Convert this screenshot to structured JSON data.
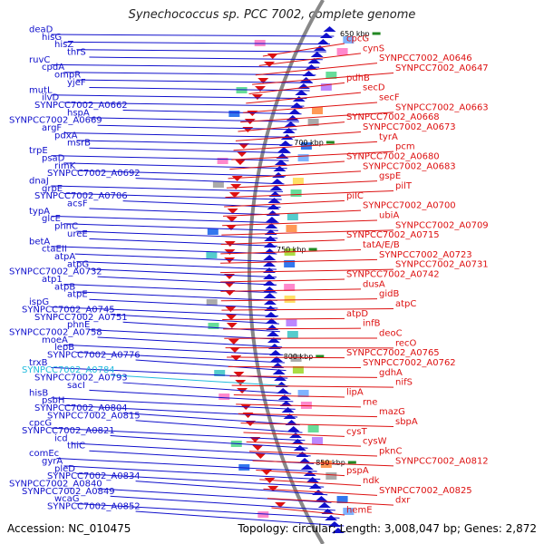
{
  "title": "Synechococcus sp. PCC 7002, complete genome",
  "footer": {
    "accession": "Accession: NC_010475",
    "summary": "Topology: circular; Length: 3,008,047 bp; Genes: 2,872"
  },
  "colors": {
    "forward": "#1010cc",
    "reverse": "#dd1111",
    "highlight": "#22bbdd",
    "backbone": "#888888",
    "tick": "#228822"
  },
  "ticks": [
    {
      "label": "650 kbp"
    },
    {
      "label": "700 kbp"
    },
    {
      "label": "750 kbp"
    },
    {
      "label": "800 kbp"
    },
    {
      "label": "850 kbp"
    }
  ],
  "left_genes": [
    {
      "name": "deaD"
    },
    {
      "name": "hisG"
    },
    {
      "name": "hisZ"
    },
    {
      "name": "thrS"
    },
    {
      "name": "ruvC"
    },
    {
      "name": "cpdA"
    },
    {
      "name": "ompR"
    },
    {
      "name": "yjeF"
    },
    {
      "name": "mutL"
    },
    {
      "name": "ilvD"
    },
    {
      "name": "SYNPCC7002_A0662"
    },
    {
      "name": "hspA"
    },
    {
      "name": "SYNPCC7002_A0669"
    },
    {
      "name": "argF"
    },
    {
      "name": "pdxA"
    },
    {
      "name": "msrB"
    },
    {
      "name": "trpE"
    },
    {
      "name": "psaD"
    },
    {
      "name": "rimK"
    },
    {
      "name": "SYNPCC7002_A0692"
    },
    {
      "name": "dnaJ"
    },
    {
      "name": "grpE"
    },
    {
      "name": "SYNPCC7002_A0706"
    },
    {
      "name": "acsF"
    },
    {
      "name": "typA"
    },
    {
      "name": "glcE"
    },
    {
      "name": "phnC"
    },
    {
      "name": "ureE"
    },
    {
      "name": "betA"
    },
    {
      "name": "ctaEII"
    },
    {
      "name": "atpA"
    },
    {
      "name": "atpG"
    },
    {
      "name": "SYNPCC7002_A0732"
    },
    {
      "name": "atp1"
    },
    {
      "name": "atpB"
    },
    {
      "name": "atpE"
    },
    {
      "name": "ispG"
    },
    {
      "name": "SYNPCC7002_A0745"
    },
    {
      "name": "SYNPCC7002_A0751"
    },
    {
      "name": "phnE"
    },
    {
      "name": "SYNPCC7002_A0758"
    },
    {
      "name": "moeA"
    },
    {
      "name": "lepB"
    },
    {
      "name": "SYNPCC7002_A0776"
    },
    {
      "name": "trxB"
    },
    {
      "name": "SYNPCC7002_A0784",
      "highlight": true
    },
    {
      "name": "SYNPCC7002_A0793"
    },
    {
      "name": "sacI"
    },
    {
      "name": "hisB"
    },
    {
      "name": "psbH"
    },
    {
      "name": "SYNPCC7002_A0804"
    },
    {
      "name": "SYNPCC7002_A0815"
    },
    {
      "name": "cpcG"
    },
    {
      "name": "SYNPCC7002_A0821"
    },
    {
      "name": "icd"
    },
    {
      "name": "thiC"
    },
    {
      "name": "comEc"
    },
    {
      "name": "gyrA"
    },
    {
      "name": "pleD"
    },
    {
      "name": "SYNPCC7002_A0834"
    },
    {
      "name": "SYNPCC7002_A0840"
    },
    {
      "name": "SYNPCC7002_A0849"
    },
    {
      "name": "wcaG"
    },
    {
      "name": "SYNPCC7002_A0852"
    }
  ],
  "right_genes": [
    {
      "name": "cpcG"
    },
    {
      "name": "cynS"
    },
    {
      "name": "SYNPCC7002_A0646"
    },
    {
      "name": "SYNPCC7002_A0647"
    },
    {
      "name": "pdhB"
    },
    {
      "name": "secD"
    },
    {
      "name": "secF"
    },
    {
      "name": "SYNPCC7002_A0663"
    },
    {
      "name": "SYNPCC7002_A0668"
    },
    {
      "name": "SYNPCC7002_A0673"
    },
    {
      "name": "tyrA"
    },
    {
      "name": "pcm"
    },
    {
      "name": "SYNPCC7002_A0680"
    },
    {
      "name": "SYNPCC7002_A0683"
    },
    {
      "name": "gspE"
    },
    {
      "name": "pilT"
    },
    {
      "name": "pilC"
    },
    {
      "name": "SYNPCC7002_A0700"
    },
    {
      "name": "ubiA"
    },
    {
      "name": "SYNPCC7002_A0709"
    },
    {
      "name": "SYNPCC7002_A0715"
    },
    {
      "name": "tatA/E/B"
    },
    {
      "name": "SYNPCC7002_A0723"
    },
    {
      "name": "SYNPCC7002_A0731"
    },
    {
      "name": "SYNPCC7002_A0742"
    },
    {
      "name": "dusA"
    },
    {
      "name": "gidB"
    },
    {
      "name": "atpC"
    },
    {
      "name": "atpD"
    },
    {
      "name": "infB"
    },
    {
      "name": "deoC"
    },
    {
      "name": "recO"
    },
    {
      "name": "SYNPCC7002_A0765"
    },
    {
      "name": "SYNPCC7002_A0762"
    },
    {
      "name": "gdhA"
    },
    {
      "name": "nifS"
    },
    {
      "name": "lipA"
    },
    {
      "name": "rne"
    },
    {
      "name": "mazG"
    },
    {
      "name": "sbpA"
    },
    {
      "name": "cysT"
    },
    {
      "name": "cysW"
    },
    {
      "name": "pknC"
    },
    {
      "name": "SYNPCC7002_A0812"
    },
    {
      "name": "pspA"
    },
    {
      "name": "ndk"
    },
    {
      "name": "SYNPCC7002_A0825"
    },
    {
      "name": "dxr"
    },
    {
      "name": "hemE"
    }
  ]
}
